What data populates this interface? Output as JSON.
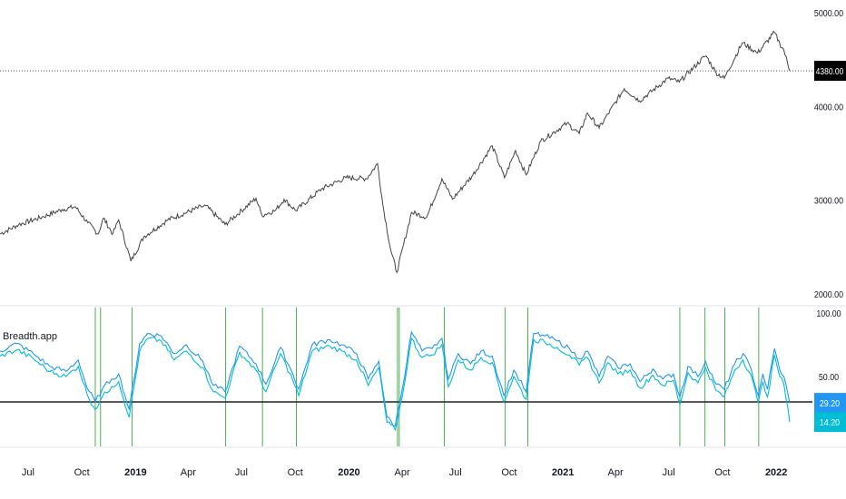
{
  "chart_data": [
    {
      "type": "line",
      "pane": "price",
      "x_range": [
        "2018-05-14",
        "2022-01-24"
      ],
      "y_range": [
        2000,
        5000
      ],
      "y_ticks": [
        {
          "value": 5000,
          "label": "5000.00"
        },
        {
          "value": 4000,
          "label": "4000.00"
        },
        {
          "value": 3000,
          "label": "3000.00"
        },
        {
          "value": 2000,
          "label": "2000.00"
        }
      ],
      "last_price": {
        "value": 4380,
        "label": "4380.00",
        "color": "#000000"
      },
      "series": [
        {
          "color": "#444444",
          "points": [
            [
              "2018-05-14",
              2640
            ],
            [
              "2018-06-15",
              2740
            ],
            [
              "2018-07-25",
              2820
            ],
            [
              "2018-08-28",
              2900
            ],
            [
              "2018-09-20",
              2930
            ],
            [
              "2018-10-11",
              2760
            ],
            [
              "2018-10-29",
              2640
            ],
            [
              "2018-11-07",
              2810
            ],
            [
              "2018-11-23",
              2640
            ],
            [
              "2018-12-03",
              2790
            ],
            [
              "2018-12-24",
              2350
            ],
            [
              "2019-01-15",
              2610
            ],
            [
              "2019-02-25",
              2790
            ],
            [
              "2019-04-23",
              2930
            ],
            [
              "2019-05-01",
              2940
            ],
            [
              "2019-06-03",
              2740
            ],
            [
              "2019-07-26",
              3020
            ],
            [
              "2019-08-05",
              2840
            ],
            [
              "2019-08-28",
              2890
            ],
            [
              "2019-09-12",
              3010
            ],
            [
              "2019-10-02",
              2890
            ],
            [
              "2019-11-15",
              3120
            ],
            [
              "2019-12-27",
              3240
            ],
            [
              "2020-01-31",
              3230
            ],
            [
              "2020-02-19",
              3390
            ],
            [
              "2020-02-28",
              2950
            ],
            [
              "2020-03-12",
              2480
            ],
            [
              "2020-03-23",
              2230
            ],
            [
              "2020-04-17",
              2870
            ],
            [
              "2020-05-13",
              2820
            ],
            [
              "2020-06-08",
              3230
            ],
            [
              "2020-06-26",
              3010
            ],
            [
              "2020-07-31",
              3270
            ],
            [
              "2020-09-02",
              3580
            ],
            [
              "2020-09-23",
              3240
            ],
            [
              "2020-10-12",
              3530
            ],
            [
              "2020-10-30",
              3270
            ],
            [
              "2020-11-24",
              3630
            ],
            [
              "2021-01-08",
              3820
            ],
            [
              "2021-01-29",
              3710
            ],
            [
              "2021-02-12",
              3930
            ],
            [
              "2021-03-04",
              3770
            ],
            [
              "2021-04-16",
              4190
            ],
            [
              "2021-05-12",
              4060
            ],
            [
              "2021-06-30",
              4300
            ],
            [
              "2021-07-19",
              4260
            ],
            [
              "2021-08-31",
              4530
            ],
            [
              "2021-09-03",
              4540
            ],
            [
              "2021-09-20",
              4360
            ],
            [
              "2021-10-04",
              4300
            ],
            [
              "2021-11-04",
              4680
            ],
            [
              "2021-11-30",
              4570
            ],
            [
              "2021-12-29",
              4790
            ],
            [
              "2022-01-07",
              4670
            ],
            [
              "2022-01-14",
              4600
            ],
            [
              "2022-01-24",
              4380
            ]
          ]
        }
      ]
    },
    {
      "type": "line",
      "pane": "indicator",
      "indicator_name": "Breadth.app",
      "x_range": [
        "2018-05-14",
        "2022-01-24"
      ],
      "y_range": [
        0,
        100
      ],
      "y_ticks": [
        {
          "value": 100,
          "label": "100.00"
        },
        {
          "value": 50,
          "label": "50.00"
        }
      ],
      "threshold": 30,
      "x_ticks": [
        {
          "date": "2018-07-01",
          "label": "Jul",
          "bold": false
        },
        {
          "date": "2018-10-01",
          "label": "Oct",
          "bold": false
        },
        {
          "date": "2019-01-01",
          "label": "2019",
          "bold": true
        },
        {
          "date": "2019-04-01",
          "label": "Apr",
          "bold": false
        },
        {
          "date": "2019-07-01",
          "label": "Jul",
          "bold": false
        },
        {
          "date": "2019-10-01",
          "label": "Oct",
          "bold": false
        },
        {
          "date": "2020-01-01",
          "label": "2020",
          "bold": true
        },
        {
          "date": "2020-04-01",
          "label": "Apr",
          "bold": false
        },
        {
          "date": "2020-07-01",
          "label": "Jul",
          "bold": false
        },
        {
          "date": "2020-10-01",
          "label": "Oct",
          "bold": false
        },
        {
          "date": "2021-01-01",
          "label": "2021",
          "bold": true
        },
        {
          "date": "2021-04-01",
          "label": "Apr",
          "bold": false
        },
        {
          "date": "2021-07-01",
          "label": "Jul",
          "bold": false
        },
        {
          "date": "2021-10-01",
          "label": "Oct",
          "bold": false
        },
        {
          "date": "2022-01-01",
          "label": "2022",
          "bold": true
        }
      ],
      "signal_dates": [
        "2018-10-24",
        "2018-11-02",
        "2018-12-26",
        "2019-06-04",
        "2019-08-06",
        "2019-10-03",
        "2020-03-24",
        "2020-03-27",
        "2020-06-12",
        "2020-09-24",
        "2020-11-02",
        "2021-07-20",
        "2021-09-01",
        "2021-10-05",
        "2021-12-02"
      ],
      "last_values": [
        {
          "value": 29.2,
          "label": "29.20",
          "color": "#2196f3"
        },
        {
          "value": 14.2,
          "label": "14.20",
          "color": "#00bcd4"
        }
      ],
      "series": [
        {
          "color": "#2196f3",
          "points": [
            [
              "2018-05-14",
              70
            ],
            [
              "2018-06-12",
              76
            ],
            [
              "2018-07-10",
              68
            ],
            [
              "2018-08-07",
              58
            ],
            [
              "2018-09-04",
              54
            ],
            [
              "2018-09-25",
              63
            ],
            [
              "2018-10-10",
              41
            ],
            [
              "2018-10-24",
              30
            ],
            [
              "2018-11-05",
              40
            ],
            [
              "2018-11-21",
              48
            ],
            [
              "2018-12-03",
              52
            ],
            [
              "2018-12-21",
              24
            ],
            [
              "2019-01-08",
              76
            ],
            [
              "2019-01-22",
              84
            ],
            [
              "2019-02-14",
              82
            ],
            [
              "2019-03-08",
              68
            ],
            [
              "2019-03-29",
              75
            ],
            [
              "2019-04-26",
              62
            ],
            [
              "2019-05-14",
              43
            ],
            [
              "2019-06-03",
              38
            ],
            [
              "2019-06-28",
              74
            ],
            [
              "2019-07-26",
              60
            ],
            [
              "2019-08-12",
              44
            ],
            [
              "2019-09-06",
              73
            ],
            [
              "2019-09-27",
              52
            ],
            [
              "2019-10-07",
              40
            ],
            [
              "2019-10-30",
              75
            ],
            [
              "2019-11-29",
              79
            ],
            [
              "2019-12-20",
              75
            ],
            [
              "2020-01-14",
              68
            ],
            [
              "2020-02-03",
              48
            ],
            [
              "2020-02-21",
              62
            ],
            [
              "2020-03-06",
              18
            ],
            [
              "2020-03-20",
              11
            ],
            [
              "2020-04-01",
              40
            ],
            [
              "2020-04-17",
              85
            ],
            [
              "2020-05-05",
              70
            ],
            [
              "2020-05-22",
              72
            ],
            [
              "2020-06-08",
              80
            ],
            [
              "2020-06-19",
              48
            ],
            [
              "2020-07-06",
              68
            ],
            [
              "2020-07-27",
              60
            ],
            [
              "2020-08-14",
              70
            ],
            [
              "2020-09-02",
              66
            ],
            [
              "2020-09-22",
              35
            ],
            [
              "2020-10-09",
              55
            ],
            [
              "2020-10-30",
              38
            ],
            [
              "2020-11-12",
              84
            ],
            [
              "2020-12-01",
              82
            ],
            [
              "2020-12-22",
              78
            ],
            [
              "2021-01-12",
              72
            ],
            [
              "2021-01-29",
              64
            ],
            [
              "2021-02-12",
              70
            ],
            [
              "2021-03-04",
              50
            ],
            [
              "2021-03-19",
              66
            ],
            [
              "2021-04-05",
              57
            ],
            [
              "2021-04-26",
              60
            ],
            [
              "2021-05-13",
              46
            ],
            [
              "2021-06-04",
              56
            ],
            [
              "2021-06-21",
              48
            ],
            [
              "2021-07-09",
              52
            ],
            [
              "2021-07-20",
              34
            ],
            [
              "2021-08-03",
              58
            ],
            [
              "2021-08-20",
              50
            ],
            [
              "2021-09-02",
              62
            ],
            [
              "2021-09-20",
              44
            ],
            [
              "2021-10-04",
              40
            ],
            [
              "2021-10-22",
              60
            ],
            [
              "2021-11-05",
              68
            ],
            [
              "2021-11-19",
              56
            ],
            [
              "2021-12-01",
              35
            ],
            [
              "2021-12-09",
              52
            ],
            [
              "2021-12-17",
              40
            ],
            [
              "2021-12-29",
              72
            ],
            [
              "2022-01-07",
              55
            ],
            [
              "2022-01-14",
              50
            ],
            [
              "2022-01-24",
              29.2
            ]
          ]
        },
        {
          "color": "#00bcd4",
          "points": [
            [
              "2018-05-14",
              66
            ],
            [
              "2018-06-12",
              71
            ],
            [
              "2018-07-10",
              64
            ],
            [
              "2018-08-07",
              54
            ],
            [
              "2018-09-04",
              50
            ],
            [
              "2018-09-25",
              58
            ],
            [
              "2018-10-10",
              36
            ],
            [
              "2018-10-24",
              24
            ],
            [
              "2018-11-05",
              34
            ],
            [
              "2018-11-21",
              42
            ],
            [
              "2018-12-03",
              46
            ],
            [
              "2018-12-21",
              18
            ],
            [
              "2019-01-08",
              70
            ],
            [
              "2019-01-22",
              80
            ],
            [
              "2019-02-14",
              78
            ],
            [
              "2019-03-08",
              63
            ],
            [
              "2019-03-29",
              70
            ],
            [
              "2019-04-26",
              57
            ],
            [
              "2019-05-14",
              38
            ],
            [
              "2019-06-03",
              33
            ],
            [
              "2019-06-28",
              69
            ],
            [
              "2019-07-26",
              55
            ],
            [
              "2019-08-12",
              38
            ],
            [
              "2019-09-06",
              68
            ],
            [
              "2019-09-27",
              47
            ],
            [
              "2019-10-07",
              35
            ],
            [
              "2019-10-30",
              70
            ],
            [
              "2019-11-29",
              74
            ],
            [
              "2019-12-20",
              70
            ],
            [
              "2020-01-14",
              63
            ],
            [
              "2020-02-03",
              43
            ],
            [
              "2020-02-21",
              57
            ],
            [
              "2020-03-06",
              14
            ],
            [
              "2020-03-20",
              8
            ],
            [
              "2020-04-01",
              34
            ],
            [
              "2020-04-17",
              80
            ],
            [
              "2020-05-05",
              65
            ],
            [
              "2020-05-22",
              67
            ],
            [
              "2020-06-08",
              75
            ],
            [
              "2020-06-19",
              42
            ],
            [
              "2020-07-06",
              63
            ],
            [
              "2020-07-27",
              55
            ],
            [
              "2020-08-14",
              65
            ],
            [
              "2020-09-02",
              61
            ],
            [
              "2020-09-22",
              30
            ],
            [
              "2020-10-09",
              50
            ],
            [
              "2020-10-30",
              32
            ],
            [
              "2020-11-12",
              79
            ],
            [
              "2020-12-01",
              77
            ],
            [
              "2020-12-22",
              73
            ],
            [
              "2021-01-12",
              67
            ],
            [
              "2021-01-29",
              59
            ],
            [
              "2021-02-12",
              65
            ],
            [
              "2021-03-04",
              45
            ],
            [
              "2021-03-19",
              61
            ],
            [
              "2021-04-05",
              52
            ],
            [
              "2021-04-26",
              55
            ],
            [
              "2021-05-13",
              41
            ],
            [
              "2021-06-04",
              51
            ],
            [
              "2021-06-21",
              43
            ],
            [
              "2021-07-09",
              47
            ],
            [
              "2021-07-20",
              28
            ],
            [
              "2021-08-03",
              53
            ],
            [
              "2021-08-20",
              45
            ],
            [
              "2021-09-02",
              57
            ],
            [
              "2021-09-20",
              39
            ],
            [
              "2021-10-04",
              34
            ],
            [
              "2021-10-22",
              55
            ],
            [
              "2021-11-05",
              63
            ],
            [
              "2021-11-19",
              51
            ],
            [
              "2021-12-01",
              29
            ],
            [
              "2021-12-09",
              46
            ],
            [
              "2021-12-17",
              34
            ],
            [
              "2021-12-29",
              67
            ],
            [
              "2022-01-07",
              50
            ],
            [
              "2022-01-14",
              44
            ],
            [
              "2022-01-24",
              14.2
            ]
          ]
        }
      ]
    }
  ],
  "colors": {
    "price_line": "#444444",
    "signal_line": "#4caf50",
    "threshold_line": "#222222",
    "axis_text": "#131722",
    "divider": "#e0e3eb"
  }
}
